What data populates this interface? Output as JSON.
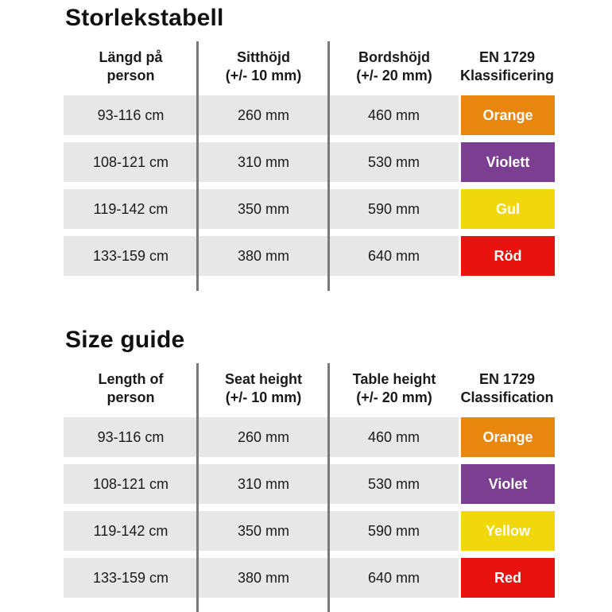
{
  "colors": {
    "row_background": "#e7e7e7",
    "divider": "#7a7a7a",
    "text": "#1a1a1a",
    "badge_text": "#ffffff",
    "orange": "#e8860d",
    "violet": "#7c3e91",
    "yellow": "#f0d80d",
    "red": "#e8120e"
  },
  "tables": [
    {
      "language": "Swedish",
      "title": "Storlekstabell",
      "headers": [
        {
          "line1": "Längd på",
          "line2": "person"
        },
        {
          "line1": "Sitthöjd",
          "line2": "(+/- 10 mm)"
        },
        {
          "line1": "Bordshöjd",
          "line2": "(+/- 20 mm)"
        },
        {
          "line1": "EN 1729",
          "line2": "Klassificering"
        }
      ],
      "rows": [
        {
          "length": "93-116 cm",
          "seat_height": "260 mm",
          "table_height": "460 mm",
          "classification": "Orange",
          "badge_color": "#e8860d"
        },
        {
          "length": "108-121 cm",
          "seat_height": "310 mm",
          "table_height": "530 mm",
          "classification": "Violett",
          "badge_color": "#7c3e91"
        },
        {
          "length": "119-142 cm",
          "seat_height": "350 mm",
          "table_height": "590 mm",
          "classification": "Gul",
          "badge_color": "#f0d80d"
        },
        {
          "length": "133-159 cm",
          "seat_height": "380 mm",
          "table_height": "640 mm",
          "classification": "Röd",
          "badge_color": "#e8120e"
        }
      ]
    },
    {
      "language": "English",
      "title": "Size guide",
      "headers": [
        {
          "line1": "Length of",
          "line2": "person"
        },
        {
          "line1": "Seat height",
          "line2": "(+/- 10 mm)"
        },
        {
          "line1": "Table height",
          "line2": "(+/- 20 mm)"
        },
        {
          "line1": "EN 1729",
          "line2": "Classification"
        }
      ],
      "rows": [
        {
          "length": "93-116 cm",
          "seat_height": "260 mm",
          "table_height": "460 mm",
          "classification": "Orange",
          "badge_color": "#e8860d"
        },
        {
          "length": "108-121 cm",
          "seat_height": "310 mm",
          "table_height": "530 mm",
          "classification": "Violet",
          "badge_color": "#7c3e91"
        },
        {
          "length": "119-142 cm",
          "seat_height": "350 mm",
          "table_height": "590 mm",
          "classification": "Yellow",
          "badge_color": "#f0d80d"
        },
        {
          "length": "133-159 cm",
          "seat_height": "380 mm",
          "table_height": "640 mm",
          "classification": "Red",
          "badge_color": "#e8120e"
        }
      ]
    }
  ]
}
